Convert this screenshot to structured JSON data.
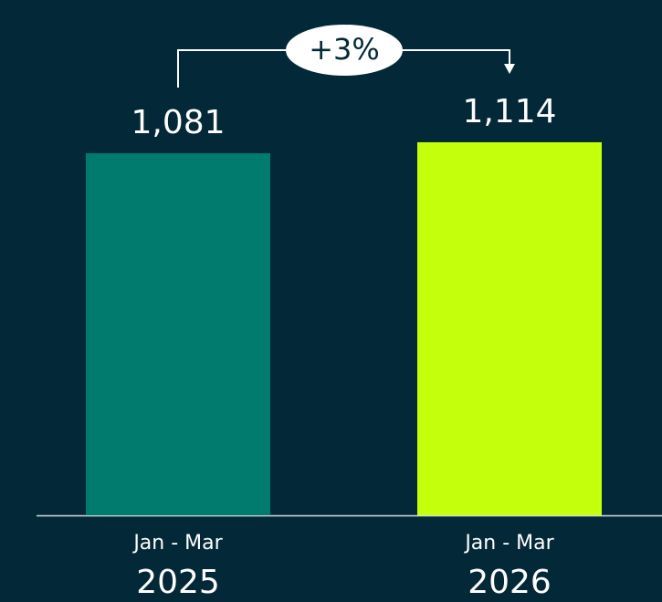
{
  "chart_data": {
    "type": "bar",
    "categories": [
      "2025",
      "2026"
    ],
    "subcategories": [
      "Jan - Mar",
      "Jan - Mar"
    ],
    "values": [
      1081,
      1114
    ],
    "value_labels": [
      "1,081",
      "1,114"
    ],
    "colors": [
      "#007b6d",
      "#c4ff0b"
    ],
    "annotation": "+3%"
  }
}
